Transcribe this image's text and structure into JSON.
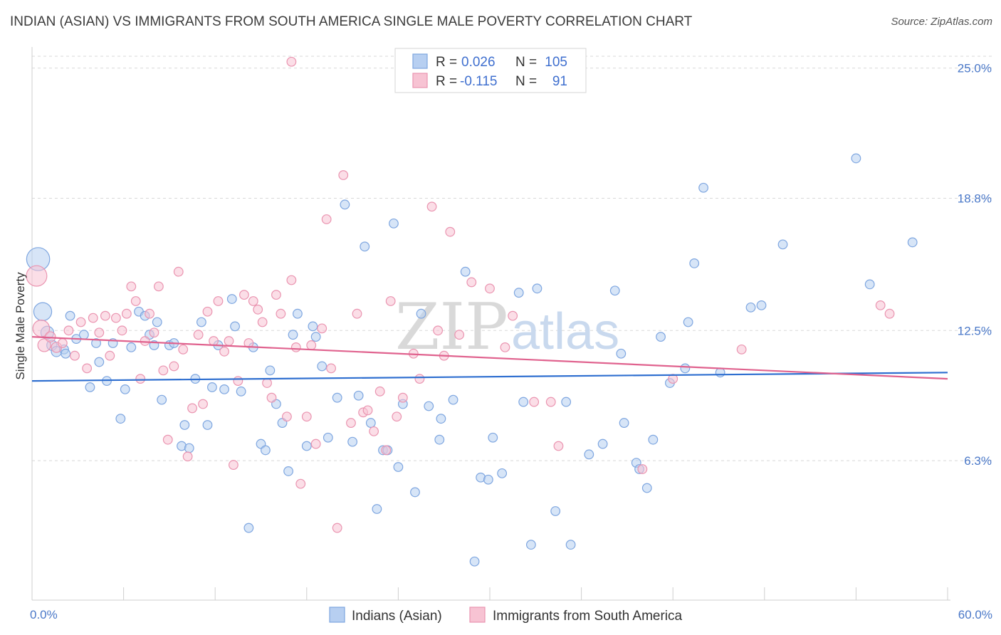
{
  "title": "INDIAN (ASIAN) VS IMMIGRANTS FROM SOUTH AMERICA SINGLE MALE POVERTY CORRELATION CHART",
  "source": "Source: ZipAtlas.com",
  "watermark": {
    "zip": "ZIP",
    "atlas": "atlas"
  },
  "legend": {
    "r_label": "R =",
    "n_label": "N =",
    "series": [
      {
        "r": "0.026",
        "n": "105"
      },
      {
        "r": "-0.115",
        "n": "91"
      }
    ]
  },
  "colors": {
    "blue_fill": "#b7cff1",
    "blue_stroke": "#7ea6e0",
    "blue_line": "#2f6fd0",
    "pink_fill": "#f7c3d3",
    "pink_stroke": "#ea94b0",
    "pink_line": "#e0628e",
    "tick_text": "#4a78c8",
    "grid": "#d8d8d8"
  },
  "chart_data": {
    "type": "scatter",
    "xlabel": "",
    "ylabel": "Single Male Poverty",
    "xlim": [
      0,
      60
    ],
    "ylim": [
      0,
      25.8
    ],
    "x_tick_labels": [
      {
        "value": 0,
        "label": "0.0%"
      },
      {
        "value": 60,
        "label": "60.0%"
      }
    ],
    "x_minor_ticks": [
      0,
      6,
      12,
      18,
      24,
      30,
      36,
      42,
      48,
      54,
      60
    ],
    "y_ticks": [
      {
        "value": 6.3,
        "label": "6.3%"
      },
      {
        "value": 12.5,
        "label": "12.5%"
      },
      {
        "value": 18.8,
        "label": "18.8%"
      },
      {
        "value": 25.0,
        "label": "25.0%"
      }
    ],
    "grid": true,
    "legend_position": "top-center",
    "series": [
      {
        "name": "Indians (Asian)",
        "trend": {
          "x0": 0,
          "y0": 10.1,
          "x1": 60,
          "y1": 10.5
        },
        "points": [
          [
            0.4,
            15.9,
            1.8
          ],
          [
            0.7,
            13.4,
            1.4
          ],
          [
            1.0,
            12.4,
            1.0
          ],
          [
            1.3,
            11.8,
            0.8
          ],
          [
            1.6,
            11.5,
            0.8
          ],
          [
            2.1,
            11.6,
            0.7
          ],
          [
            2.2,
            11.4,
            0.7
          ],
          [
            2.5,
            13.2,
            0.7
          ],
          [
            2.9,
            12.1,
            0.7
          ],
          [
            3.4,
            12.3,
            0.7
          ],
          [
            3.8,
            9.8,
            0.7
          ],
          [
            4.2,
            11.9,
            0.7
          ],
          [
            4.4,
            11.0,
            0.7
          ],
          [
            4.9,
            10.1,
            0.7
          ],
          [
            5.3,
            11.9,
            0.7
          ],
          [
            5.8,
            8.3,
            0.7
          ],
          [
            6.1,
            9.7,
            0.7
          ],
          [
            6.5,
            11.7,
            0.7
          ],
          [
            7.0,
            13.4,
            0.7
          ],
          [
            7.4,
            13.2,
            0.7
          ],
          [
            7.7,
            12.3,
            0.7
          ],
          [
            8.0,
            11.8,
            0.7
          ],
          [
            8.2,
            12.9,
            0.7
          ],
          [
            8.5,
            9.2,
            0.7
          ],
          [
            9.0,
            11.8,
            0.7
          ],
          [
            9.3,
            11.9,
            0.7
          ],
          [
            9.8,
            7.0,
            0.7
          ],
          [
            10.0,
            8.0,
            0.7
          ],
          [
            10.3,
            6.9,
            0.7
          ],
          [
            10.7,
            10.2,
            0.7
          ],
          [
            11.1,
            12.9,
            0.7
          ],
          [
            11.5,
            8.0,
            0.7
          ],
          [
            11.8,
            9.8,
            0.7
          ],
          [
            12.2,
            11.8,
            0.7
          ],
          [
            12.6,
            9.7,
            0.7
          ],
          [
            13.1,
            14.0,
            0.7
          ],
          [
            13.3,
            12.7,
            0.7
          ],
          [
            13.7,
            9.6,
            0.7
          ],
          [
            14.2,
            3.1,
            0.7
          ],
          [
            14.5,
            11.7,
            0.7
          ],
          [
            15.0,
            7.1,
            0.7
          ],
          [
            15.3,
            6.8,
            0.7
          ],
          [
            15.6,
            10.6,
            0.7
          ],
          [
            16.0,
            9.0,
            0.7
          ],
          [
            16.4,
            8.1,
            0.7
          ],
          [
            16.8,
            5.8,
            0.7
          ],
          [
            17.1,
            12.3,
            0.7
          ],
          [
            17.4,
            13.3,
            0.7
          ],
          [
            18.0,
            7.0,
            0.7
          ],
          [
            18.4,
            12.7,
            0.7
          ],
          [
            18.6,
            12.2,
            0.7
          ],
          [
            19.0,
            10.8,
            0.7
          ],
          [
            19.4,
            7.4,
            0.7
          ],
          [
            20.0,
            9.3,
            0.7
          ],
          [
            20.5,
            18.5,
            0.7
          ],
          [
            21.0,
            7.2,
            0.7
          ],
          [
            21.4,
            9.4,
            0.7
          ],
          [
            21.8,
            16.5,
            0.7
          ],
          [
            22.2,
            8.1,
            0.7
          ],
          [
            22.6,
            4.0,
            0.7
          ],
          [
            23.0,
            6.8,
            0.7
          ],
          [
            23.3,
            6.8,
            0.7
          ],
          [
            23.7,
            17.6,
            0.7
          ],
          [
            24.0,
            6.0,
            0.7
          ],
          [
            24.3,
            9.0,
            0.7
          ],
          [
            25.1,
            4.8,
            0.7
          ],
          [
            25.5,
            13.3,
            0.7
          ],
          [
            26.0,
            8.9,
            0.7
          ],
          [
            26.8,
            8.3,
            0.7
          ],
          [
            26.7,
            7.3,
            0.7
          ],
          [
            27.6,
            9.2,
            0.7
          ],
          [
            28.4,
            15.3,
            0.7
          ],
          [
            29.0,
            1.5,
            0.7
          ],
          [
            29.4,
            5.5,
            0.7
          ],
          [
            29.9,
            5.4,
            0.7
          ],
          [
            30.2,
            7.4,
            0.7
          ],
          [
            30.8,
            5.7,
            0.7
          ],
          [
            31.9,
            14.3,
            0.7
          ],
          [
            32.2,
            9.1,
            0.7
          ],
          [
            32.7,
            2.3,
            0.7
          ],
          [
            33.1,
            14.5,
            0.7
          ],
          [
            34.3,
            3.9,
            0.7
          ],
          [
            35.0,
            9.1,
            0.7
          ],
          [
            35.3,
            2.3,
            0.7
          ],
          [
            36.5,
            6.6,
            0.7
          ],
          [
            37.4,
            7.1,
            0.7
          ],
          [
            38.2,
            14.4,
            0.7
          ],
          [
            38.6,
            11.4,
            0.7
          ],
          [
            38.8,
            8.1,
            0.7
          ],
          [
            39.6,
            6.2,
            0.7
          ],
          [
            39.8,
            5.9,
            0.7
          ],
          [
            40.3,
            5.0,
            0.7
          ],
          [
            40.7,
            7.3,
            0.7
          ],
          [
            41.2,
            12.2,
            0.7
          ],
          [
            41.8,
            10.0,
            0.7
          ],
          [
            42.8,
            10.7,
            0.7
          ],
          [
            43.0,
            12.9,
            0.7
          ],
          [
            43.4,
            15.7,
            0.7
          ],
          [
            44.0,
            19.3,
            0.7
          ],
          [
            45.1,
            10.5,
            0.7
          ],
          [
            47.1,
            13.6,
            0.7
          ],
          [
            47.8,
            13.7,
            0.7
          ],
          [
            49.2,
            16.6,
            0.7
          ],
          [
            54.0,
            20.7,
            0.7
          ],
          [
            54.9,
            14.7,
            0.7
          ],
          [
            57.7,
            16.7,
            0.7
          ]
        ]
      },
      {
        "name": "Immigrants from South America",
        "trend": {
          "x0": 0,
          "y0": 12.2,
          "x1": 60,
          "y1": 10.2
        },
        "points": [
          [
            0.3,
            15.1,
            1.6
          ],
          [
            0.6,
            12.6,
            1.3
          ],
          [
            0.8,
            11.8,
            1.0
          ],
          [
            1.2,
            12.2,
            0.8
          ],
          [
            1.6,
            11.7,
            0.8
          ],
          [
            2.0,
            11.9,
            0.7
          ],
          [
            2.4,
            12.5,
            0.7
          ],
          [
            2.8,
            11.3,
            0.7
          ],
          [
            3.2,
            12.9,
            0.7
          ],
          [
            3.6,
            10.7,
            0.7
          ],
          [
            4.0,
            13.1,
            0.7
          ],
          [
            4.4,
            12.4,
            0.7
          ],
          [
            4.8,
            13.2,
            0.7
          ],
          [
            5.1,
            11.3,
            0.7
          ],
          [
            5.5,
            13.1,
            0.7
          ],
          [
            5.9,
            12.5,
            0.7
          ],
          [
            6.2,
            13.3,
            0.7
          ],
          [
            6.5,
            14.6,
            0.7
          ],
          [
            6.8,
            13.9,
            0.7
          ],
          [
            7.1,
            10.2,
            0.7
          ],
          [
            7.4,
            12.0,
            0.7
          ],
          [
            7.7,
            13.3,
            0.7
          ],
          [
            8.0,
            12.4,
            0.7
          ],
          [
            8.3,
            14.6,
            0.7
          ],
          [
            8.6,
            10.6,
            0.7
          ],
          [
            8.9,
            7.3,
            0.7
          ],
          [
            9.3,
            10.8,
            0.7
          ],
          [
            9.6,
            15.3,
            0.7
          ],
          [
            9.9,
            11.6,
            0.7
          ],
          [
            10.2,
            6.5,
            0.7
          ],
          [
            10.5,
            8.8,
            0.7
          ],
          [
            10.9,
            12.3,
            0.7
          ],
          [
            11.2,
            9.0,
            0.7
          ],
          [
            11.5,
            13.4,
            0.7
          ],
          [
            11.9,
            12.0,
            0.7
          ],
          [
            12.2,
            13.9,
            0.7
          ],
          [
            12.6,
            11.5,
            0.7
          ],
          [
            12.9,
            12.0,
            0.7
          ],
          [
            13.2,
            6.1,
            0.7
          ],
          [
            13.5,
            10.1,
            0.7
          ],
          [
            13.9,
            14.2,
            0.7
          ],
          [
            14.2,
            11.9,
            0.7
          ],
          [
            14.5,
            13.9,
            0.7
          ],
          [
            14.8,
            13.5,
            0.7
          ],
          [
            15.1,
            12.9,
            0.7
          ],
          [
            15.4,
            10.0,
            0.7
          ],
          [
            15.7,
            9.3,
            0.7
          ],
          [
            16.0,
            14.2,
            0.7
          ],
          [
            16.3,
            13.3,
            0.7
          ],
          [
            16.7,
            8.4,
            0.7
          ],
          [
            17.0,
            14.9,
            0.7
          ],
          [
            17.3,
            11.7,
            0.7
          ],
          [
            17.6,
            5.2,
            0.7
          ],
          [
            18.0,
            8.4,
            0.7
          ],
          [
            18.3,
            11.8,
            0.7
          ],
          [
            18.6,
            7.1,
            0.7
          ],
          [
            19.0,
            12.6,
            0.7
          ],
          [
            19.3,
            17.8,
            0.7
          ],
          [
            19.6,
            10.7,
            0.7
          ],
          [
            20.0,
            3.1,
            0.7
          ],
          [
            20.4,
            19.9,
            0.7
          ],
          [
            20.9,
            8.1,
            0.7
          ],
          [
            21.3,
            13.3,
            0.7
          ],
          [
            21.7,
            8.6,
            0.7
          ],
          [
            22.0,
            8.7,
            0.7
          ],
          [
            22.4,
            7.7,
            0.7
          ],
          [
            22.8,
            9.6,
            0.7
          ],
          [
            23.2,
            6.8,
            0.7
          ],
          [
            23.5,
            13.9,
            0.7
          ],
          [
            23.9,
            8.4,
            0.7
          ],
          [
            24.3,
            9.3,
            0.7
          ],
          [
            25.0,
            11.4,
            0.7
          ],
          [
            25.4,
            10.2,
            0.7
          ],
          [
            26.2,
            18.4,
            0.7
          ],
          [
            26.6,
            12.5,
            0.7
          ],
          [
            27.0,
            11.3,
            0.7
          ],
          [
            27.4,
            17.2,
            0.7
          ],
          [
            28.0,
            12.3,
            0.7
          ],
          [
            28.8,
            14.8,
            0.7
          ],
          [
            30.0,
            14.5,
            0.7
          ],
          [
            31.0,
            11.7,
            0.7
          ],
          [
            31.5,
            13.2,
            0.7
          ],
          [
            32.9,
            9.1,
            0.7
          ],
          [
            34.0,
            9.1,
            0.7
          ],
          [
            34.5,
            7.0,
            0.7
          ],
          [
            40.0,
            5.9,
            0.7
          ],
          [
            42.0,
            10.2,
            0.7
          ],
          [
            46.5,
            11.6,
            0.7
          ],
          [
            55.6,
            13.7,
            0.7
          ],
          [
            56.2,
            13.3,
            0.7
          ],
          [
            17.0,
            25.3,
            0.7
          ]
        ]
      }
    ]
  },
  "bottom_legend": [
    {
      "label": "Indians (Asian)"
    },
    {
      "label": "Immigrants from South America"
    }
  ]
}
